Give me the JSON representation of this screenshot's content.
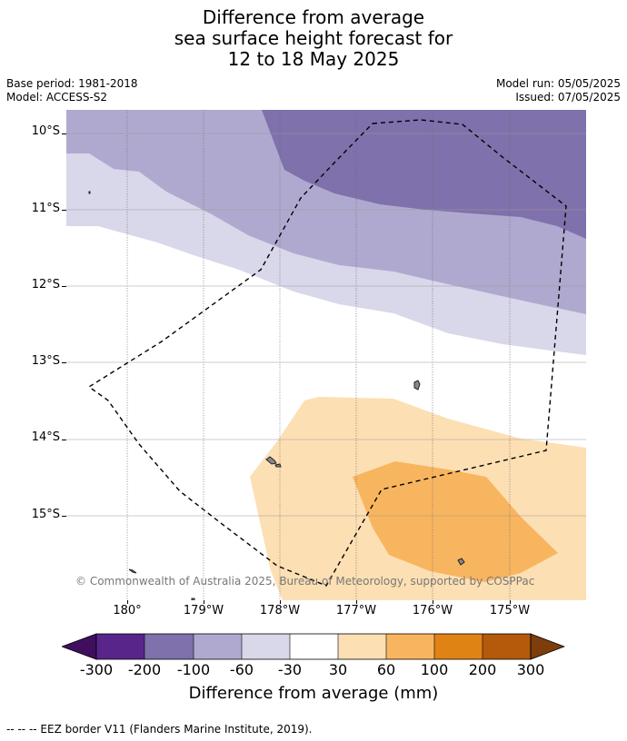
{
  "title": {
    "line1": "Difference from average",
    "line2": "sea surface height forecast for",
    "line3": "12 to 18 May 2025"
  },
  "meta": {
    "base_period": "Base period: 1981-2018",
    "model": "Model: ACCESS-S2",
    "model_run": "Model run: 05/05/2025",
    "issued": "Issued: 07/05/2025"
  },
  "map": {
    "lat_labels": [
      "10°S",
      "11°S",
      "12°S",
      "13°S",
      "14°S",
      "15°S"
    ],
    "lon_labels": [
      "180°",
      "179°W",
      "178°W",
      "177°W",
      "176°W",
      "175°W"
    ],
    "copyright": "© Commonwealth of Australia 2025, Bureau of Meteorology, supported by COSPPac",
    "eez_style": "dashed black line"
  },
  "colorbar": {
    "title": "Difference from average (mm)",
    "labels": [
      "-300",
      "-200",
      "-100",
      "-60",
      "-30",
      "30",
      "60",
      "100",
      "200",
      "300"
    ],
    "colors": [
      "#3f0f5e",
      "#58258a",
      "#7f71ab",
      "#b0a9cf",
      "#d8d8ea",
      "#ffffff",
      "#fddfb4",
      "#f8b55f",
      "#e08315",
      "#b45a0a",
      "#7d3d0c"
    ]
  },
  "footer": "--  --  -- EEZ border V11 (Flanders Marine Institute, 2019)."
}
